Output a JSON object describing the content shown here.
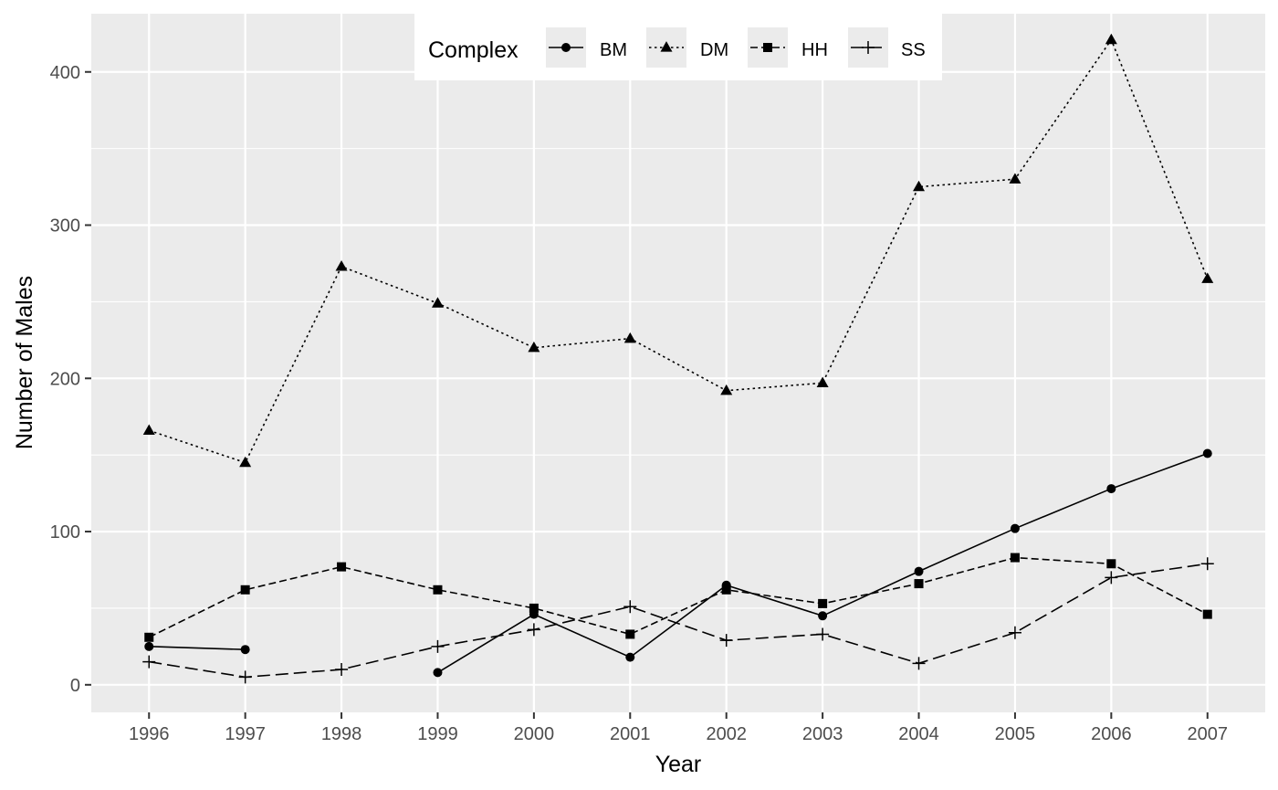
{
  "chart_data": {
    "type": "line",
    "xlabel": "Year",
    "ylabel": "Number of Males",
    "xlim": [
      1995.4,
      2007.6
    ],
    "ylim": [
      -18,
      438
    ],
    "x_ticks": [
      1996,
      1997,
      1998,
      1999,
      2000,
      2001,
      2002,
      2003,
      2004,
      2005,
      2006,
      2007
    ],
    "y_ticks": [
      0,
      100,
      200,
      300,
      400
    ],
    "grid": true,
    "legend": {
      "title": "Complex",
      "placement": "top-center",
      "items": [
        "BM",
        "DM",
        "HH",
        "SS"
      ]
    },
    "series": [
      {
        "name": "BM",
        "linetype": "solid",
        "marker": "circle",
        "values": [
          [
            1996,
            25
          ],
          [
            1997,
            23
          ],
          [
            1998,
            null
          ],
          [
            1999,
            8
          ],
          [
            2000,
            46
          ],
          [
            2001,
            18
          ],
          [
            2002,
            65
          ],
          [
            2003,
            45
          ],
          [
            2004,
            74
          ],
          [
            2005,
            102
          ],
          [
            2006,
            128
          ],
          [
            2007,
            151
          ]
        ]
      },
      {
        "name": "DM",
        "linetype": "dotted",
        "marker": "triangle",
        "values": [
          [
            1996,
            166
          ],
          [
            1997,
            145
          ],
          [
            1998,
            273
          ],
          [
            1999,
            249
          ],
          [
            2000,
            220
          ],
          [
            2001,
            226
          ],
          [
            2002,
            192
          ],
          [
            2003,
            197
          ],
          [
            2004,
            325
          ],
          [
            2005,
            330
          ],
          [
            2006,
            421
          ],
          [
            2007,
            265
          ]
        ]
      },
      {
        "name": "HH",
        "linetype": "dashed",
        "marker": "square",
        "values": [
          [
            1996,
            31
          ],
          [
            1997,
            62
          ],
          [
            1998,
            77
          ],
          [
            1999,
            62
          ],
          [
            2000,
            50
          ],
          [
            2001,
            33
          ],
          [
            2002,
            62
          ],
          [
            2003,
            53
          ],
          [
            2004,
            66
          ],
          [
            2005,
            83
          ],
          [
            2006,
            79
          ],
          [
            2007,
            46
          ]
        ]
      },
      {
        "name": "SS",
        "linetype": "longdash",
        "marker": "plus",
        "values": [
          [
            1996,
            15
          ],
          [
            1997,
            5
          ],
          [
            1998,
            10
          ],
          [
            1999,
            25
          ],
          [
            2000,
            36
          ],
          [
            2001,
            51
          ],
          [
            2002,
            29
          ],
          [
            2003,
            33
          ],
          [
            2004,
            14
          ],
          [
            2005,
            34
          ],
          [
            2006,
            70
          ],
          [
            2007,
            79
          ]
        ]
      }
    ],
    "colors": {
      "panel_background": "#ebebeb",
      "grid": "#ffffff",
      "series": "#000000"
    }
  }
}
